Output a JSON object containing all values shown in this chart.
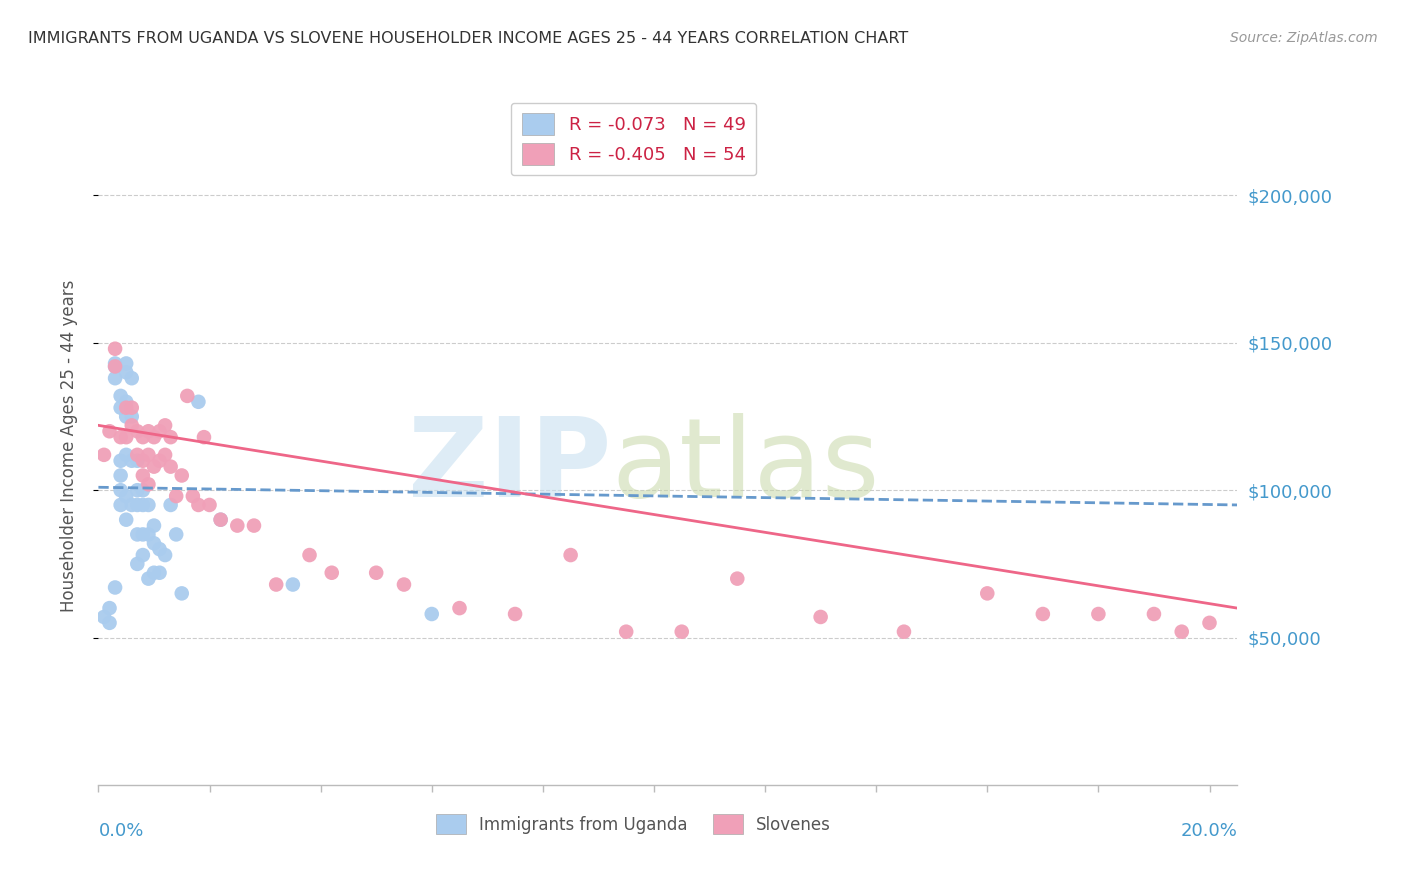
{
  "title": "IMMIGRANTS FROM UGANDA VS SLOVENE HOUSEHOLDER INCOME AGES 25 - 44 YEARS CORRELATION CHART",
  "source": "Source: ZipAtlas.com",
  "ylabel": "Householder Income Ages 25 - 44 years",
  "ytick_values": [
    50000,
    100000,
    150000,
    200000
  ],
  "ylim": [
    0,
    230000
  ],
  "xlim": [
    0.0,
    0.205
  ],
  "uganda_color": "#aaccee",
  "slovene_color": "#f0a0b8",
  "trend_uganda_color": "#6699cc",
  "trend_slovene_color": "#ee6688",
  "uganda_points_x": [
    0.001,
    0.002,
    0.002,
    0.003,
    0.003,
    0.003,
    0.003,
    0.004,
    0.004,
    0.004,
    0.004,
    0.004,
    0.004,
    0.005,
    0.005,
    0.005,
    0.005,
    0.005,
    0.005,
    0.005,
    0.006,
    0.006,
    0.006,
    0.006,
    0.007,
    0.007,
    0.007,
    0.007,
    0.007,
    0.008,
    0.008,
    0.008,
    0.008,
    0.009,
    0.009,
    0.009,
    0.01,
    0.01,
    0.01,
    0.011,
    0.011,
    0.012,
    0.013,
    0.014,
    0.015,
    0.018,
    0.022,
    0.035,
    0.06
  ],
  "uganda_points_y": [
    57000,
    55000,
    60000,
    143000,
    142000,
    138000,
    67000,
    132000,
    128000,
    110000,
    105000,
    100000,
    95000,
    143000,
    140000,
    130000,
    125000,
    112000,
    98000,
    90000,
    138000,
    125000,
    110000,
    95000,
    110000,
    100000,
    95000,
    85000,
    75000,
    100000,
    95000,
    85000,
    78000,
    95000,
    85000,
    70000,
    88000,
    82000,
    72000,
    80000,
    72000,
    78000,
    95000,
    85000,
    65000,
    130000,
    90000,
    68000,
    58000
  ],
  "slovene_points_x": [
    0.001,
    0.002,
    0.003,
    0.003,
    0.004,
    0.005,
    0.005,
    0.006,
    0.006,
    0.007,
    0.007,
    0.008,
    0.008,
    0.008,
    0.009,
    0.009,
    0.009,
    0.01,
    0.01,
    0.011,
    0.011,
    0.012,
    0.012,
    0.013,
    0.013,
    0.014,
    0.015,
    0.016,
    0.017,
    0.018,
    0.019,
    0.02,
    0.022,
    0.025,
    0.028,
    0.032,
    0.038,
    0.042,
    0.05,
    0.055,
    0.065,
    0.075,
    0.085,
    0.095,
    0.105,
    0.115,
    0.13,
    0.145,
    0.16,
    0.17,
    0.18,
    0.19,
    0.195,
    0.2
  ],
  "slovene_points_y": [
    112000,
    120000,
    148000,
    142000,
    118000,
    128000,
    118000,
    128000,
    122000,
    120000,
    112000,
    118000,
    110000,
    105000,
    120000,
    112000,
    102000,
    118000,
    108000,
    120000,
    110000,
    122000,
    112000,
    118000,
    108000,
    98000,
    105000,
    132000,
    98000,
    95000,
    118000,
    95000,
    90000,
    88000,
    88000,
    68000,
    78000,
    72000,
    72000,
    68000,
    60000,
    58000,
    78000,
    52000,
    52000,
    70000,
    57000,
    52000,
    65000,
    58000,
    58000,
    58000,
    52000,
    55000
  ],
  "uganda_trend_x": [
    0.0,
    0.205
  ],
  "uganda_trend_y": [
    101000,
    95000
  ],
  "slovene_trend_x": [
    0.0,
    0.205
  ],
  "slovene_trend_y": [
    122000,
    60000
  ],
  "bg_color": "#ffffff",
  "grid_color": "#cccccc",
  "axis_color": "#bbbbbb",
  "title_color": "#333333",
  "tick_color": "#4499cc",
  "legend_r_color": "#cc2244",
  "legend_n_color": "#2266bb",
  "legend_r1": "R = -0.073",
  "legend_n1": "N = 49",
  "legend_r2": "R = -0.405",
  "legend_n2": "N = 54",
  "bottom_legend_1": "Immigrants from Uganda",
  "bottom_legend_2": "Slovenes",
  "watermark_zip": "ZIP",
  "watermark_atlas": "atlas"
}
